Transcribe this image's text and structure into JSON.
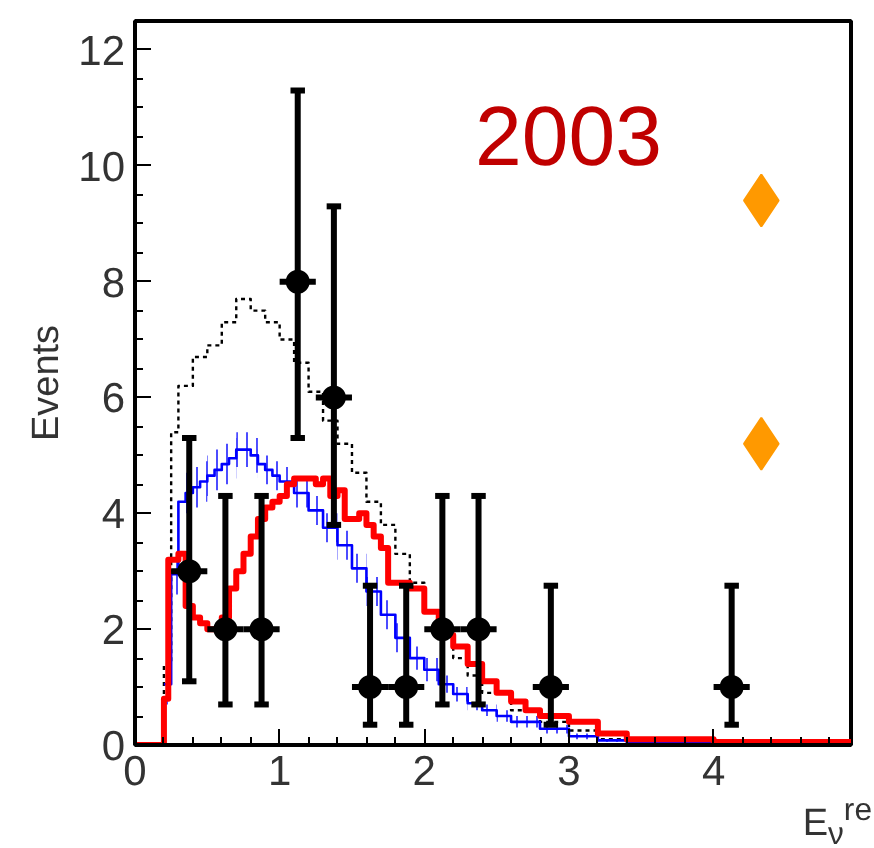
{
  "chart_data": {
    "type": "step",
    "xlabel": "E$_{ν}$$^{re}$",
    "ylabel": "Events",
    "annotations": [
      "2003"
    ],
    "xlim": [
      0,
      4.95
    ],
    "ylim": [
      0,
      12.5
    ],
    "xticks": [
      0,
      1,
      2,
      3,
      4
    ],
    "yticks": [
      0,
      2,
      4,
      6,
      8,
      10,
      12
    ],
    "grid": false,
    "line_style": "solid",
    "series": [
      {
        "line_style": "dotted",
        "color": "#000000",
        "x": [
          0,
          0.2,
          0.25,
          0.3,
          0.4,
          0.5,
          0.6,
          0.7,
          0.75,
          0.8,
          0.9,
          1.0,
          1.1,
          1.2,
          1.3,
          1.4,
          1.5,
          1.6,
          1.7,
          1.8,
          1.9,
          2.0,
          2.1,
          2.2,
          2.3,
          2.4,
          2.6,
          2.8,
          3.0,
          3.2,
          3.5,
          4.0,
          4.9
        ],
        "values": [
          0,
          1.4,
          5.4,
          6.2,
          6.7,
          6.9,
          7.3,
          7.7,
          7.7,
          7.5,
          7.3,
          7.0,
          6.6,
          6.1,
          5.6,
          5.2,
          4.7,
          4.2,
          3.8,
          3.3,
          2.8,
          2.3,
          1.9,
          1.5,
          1.2,
          0.9,
          0.6,
          0.4,
          0.25,
          0.1,
          0.05,
          0.02,
          0.02
        ]
      },
      {
        "color": "#0000ff",
        "x": [
          0.2,
          0.25,
          0.3,
          0.35,
          0.4,
          0.45,
          0.5,
          0.55,
          0.6,
          0.65,
          0.7,
          0.75,
          0.8,
          0.85,
          0.9,
          0.95,
          1.0,
          1.1,
          1.2,
          1.3,
          1.4,
          1.5,
          1.6,
          1.7,
          1.8,
          1.9,
          2.0,
          2.1,
          2.2,
          2.3,
          2.4,
          2.5,
          2.6,
          2.8,
          3.0,
          3.2,
          3.4,
          4.0
        ],
        "values": [
          1.05,
          2.95,
          4.2,
          4.35,
          4.45,
          4.55,
          4.65,
          4.75,
          4.85,
          4.95,
          5.1,
          5.1,
          5.0,
          4.85,
          4.75,
          4.65,
          4.55,
          4.35,
          4.05,
          3.75,
          3.45,
          3.05,
          2.65,
          2.25,
          1.85,
          1.5,
          1.3,
          1.05,
          0.88,
          0.72,
          0.6,
          0.5,
          0.4,
          0.28,
          0.15,
          0.08,
          0.04,
          0.01
        ],
        "lower": [
          0.7,
          2.6,
          3.8,
          4.0,
          4.1,
          4.2,
          4.3,
          4.4,
          4.5,
          4.6,
          4.8,
          4.8,
          4.7,
          4.6,
          4.5,
          4.4,
          4.3,
          4.1,
          3.8,
          3.5,
          3.2,
          2.8,
          2.4,
          2.0,
          1.6,
          1.3,
          1.1,
          0.9,
          0.75,
          0.6,
          0.5,
          0.4,
          0.3,
          0.2,
          0.1,
          0.05,
          0.02,
          0.0
        ],
        "upper": [
          1.4,
          3.3,
          4.6,
          4.7,
          4.8,
          4.9,
          5.0,
          5.1,
          5.2,
          5.3,
          5.4,
          5.4,
          5.3,
          5.1,
          5.0,
          4.9,
          4.8,
          4.6,
          4.3,
          4.0,
          3.7,
          3.3,
          2.9,
          2.5,
          2.1,
          1.7,
          1.5,
          1.2,
          1.0,
          0.85,
          0.7,
          0.6,
          0.5,
          0.35,
          0.2,
          0.1,
          0.05,
          0.02
        ]
      },
      {
        "color": "#ff0000",
        "x": [
          0,
          0.2,
          0.23,
          0.3,
          0.35,
          0.4,
          0.45,
          0.5,
          0.6,
          0.65,
          0.7,
          0.75,
          0.8,
          0.85,
          0.9,
          0.95,
          1.0,
          1.05,
          1.1,
          1.2,
          1.25,
          1.3,
          1.35,
          1.4,
          1.45,
          1.55,
          1.6,
          1.65,
          1.7,
          1.75,
          1.9,
          2.0,
          2.1,
          2.2,
          2.3,
          2.4,
          2.5,
          2.6,
          2.7,
          2.8,
          3.0,
          3.2,
          3.4,
          4.0,
          4.95
        ],
        "values": [
          0,
          0.8,
          3.2,
          3.3,
          2.4,
          2.2,
          2.1,
          2.0,
          2.2,
          2.7,
          3.0,
          3.3,
          3.6,
          3.9,
          4.1,
          4.2,
          4.3,
          4.5,
          4.6,
          4.6,
          4.5,
          4.6,
          4.3,
          4.4,
          3.9,
          4.0,
          3.8,
          3.6,
          3.4,
          2.8,
          2.7,
          2.3,
          1.9,
          1.7,
          1.4,
          1.1,
          0.9,
          0.75,
          0.6,
          0.5,
          0.4,
          0.2,
          0.1,
          0.05,
          0.05
        ]
      },
      {
        "type": "scatter",
        "marker": "circle",
        "color": "#000000",
        "x": [
          0.375,
          0.625,
          0.875,
          1.125,
          1.375,
          1.625,
          1.875,
          2.125,
          2.375,
          2.875,
          4.125
        ],
        "values": [
          3,
          2,
          2,
          8,
          6,
          1,
          1,
          2,
          2,
          1,
          1
        ],
        "errors": [
          [
            1.1,
            5.3
          ],
          [
            0.7,
            4.3
          ],
          [
            0.7,
            4.3
          ],
          [
            5.3,
            11.3
          ],
          [
            3.8,
            9.3
          ],
          [
            0.35,
            2.75
          ],
          [
            0.35,
            2.75
          ],
          [
            0.7,
            4.3
          ],
          [
            0.7,
            4.3
          ],
          [
            0.35,
            2.75
          ],
          [
            0.35,
            2.75
          ]
        ],
        "xerrors": [
          0.125,
          0.125,
          0.125,
          0.125,
          0.125,
          0.125,
          0.125,
          0.125,
          0.125,
          0.125,
          0.125
        ]
      },
      {
        "type": "scatter",
        "marker": "diamond",
        "color": "#ff9900",
        "x": [
          4.33,
          4.33
        ],
        "values": [
          9.4,
          5.2
        ]
      }
    ]
  }
}
